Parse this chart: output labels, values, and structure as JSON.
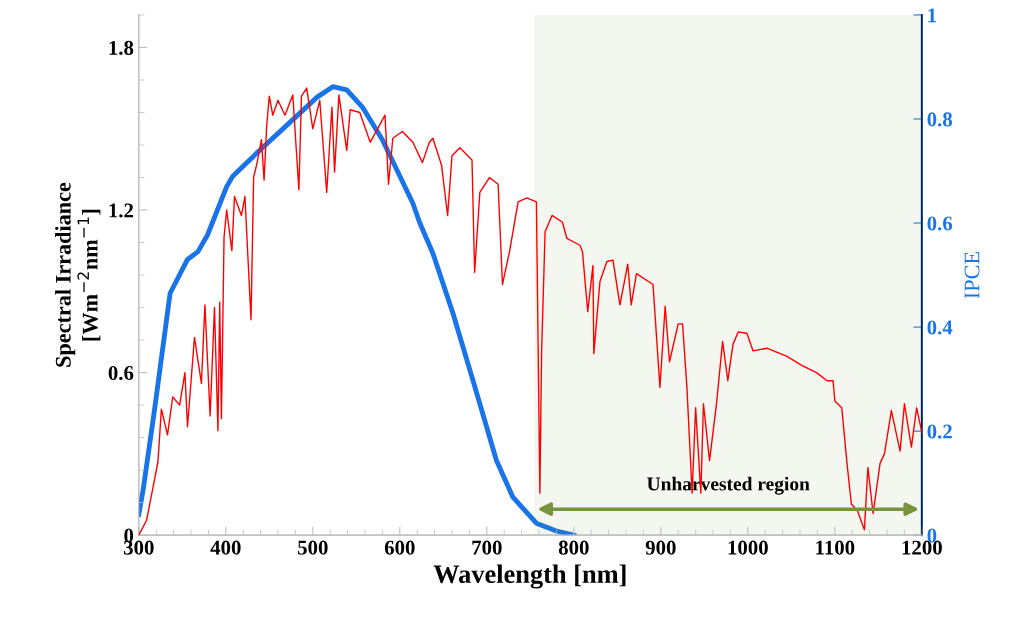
{
  "chart_data": {
    "type": "line",
    "xlabel": "Wavelength [nm]",
    "ylabel": "Spectral Irradiance\n[Wm$^{−2}$nm$^{−1}$]",
    "y2label": "IPCE",
    "xlim": [
      300,
      1200
    ],
    "xticks": [
      300,
      400,
      500,
      600,
      700,
      800,
      900,
      1000,
      1100,
      1200
    ],
    "ylim": [
      0,
      1.92
    ],
    "yticks": [
      0,
      0.6,
      1.2,
      1.8
    ],
    "y2lim": [
      0,
      1
    ],
    "y2ticks": [
      0,
      0.2,
      0.4,
      0.6,
      0.8,
      1
    ],
    "grid": false,
    "legend": false,
    "marker": "none",
    "line_style": "solid",
    "bands": [
      {
        "axis": "x",
        "from": 755,
        "to": 1200,
        "label": "Unharvested region",
        "color": "#77933c"
      }
    ],
    "series": [
      {
        "color": "#ff0000",
        "axis": "y",
        "x": [
          300,
          309,
          322,
          326,
          333,
          339,
          347,
          353,
          356,
          364,
          372,
          376,
          382,
          387,
          391,
          393,
          395,
          398,
          401,
          407,
          410,
          418,
          422,
          429,
          432,
          436,
          441,
          444,
          447,
          450,
          454,
          460,
          468,
          477,
          484,
          487,
          493,
          500,
          508,
          516,
          522,
          525,
          530,
          539,
          543,
          554,
          566,
          583,
          587,
          592,
          603,
          615,
          626,
          634,
          638,
          648,
          655,
          660,
          669,
          683,
          686,
          692,
          703,
          713,
          718,
          726,
          736,
          746,
          757,
          761,
          763,
          767,
          775,
          787,
          792,
          807,
          810,
          816,
          822,
          823,
          830,
          838,
          845,
          853,
          862,
          866,
          872,
          891,
          899,
          905,
          910,
          920,
          925,
          930,
          936,
          940,
          946,
          949,
          956,
          964,
          971,
          977,
          983,
          989,
          999,
          1006,
          1022,
          1045,
          1063,
          1079,
          1091,
          1098,
          1100,
          1108,
          1114,
          1119,
          1126,
          1134,
          1138,
          1144,
          1152,
          1157,
          1165,
          1175,
          1180,
          1188,
          1194,
          1200
        ],
        "values": [
          0,
          0.055,
          0.27,
          0.465,
          0.37,
          0.51,
          0.48,
          0.6,
          0.4,
          0.73,
          0.56,
          0.85,
          0.44,
          0.84,
          0.385,
          0.86,
          0.43,
          1.1,
          1.2,
          1.05,
          1.25,
          1.18,
          1.25,
          0.795,
          1.32,
          1.375,
          1.46,
          1.31,
          1.51,
          1.62,
          1.55,
          1.605,
          1.55,
          1.625,
          1.275,
          1.62,
          1.65,
          1.5,
          1.605,
          1.265,
          1.58,
          1.34,
          1.625,
          1.42,
          1.57,
          1.56,
          1.45,
          1.55,
          1.295,
          1.465,
          1.49,
          1.45,
          1.375,
          1.45,
          1.465,
          1.365,
          1.18,
          1.4,
          1.43,
          1.385,
          0.97,
          1.265,
          1.32,
          1.295,
          0.925,
          1.045,
          1.23,
          1.245,
          1.23,
          0.155,
          0.68,
          1.12,
          1.18,
          1.155,
          1.095,
          1.07,
          1.045,
          0.825,
          0.995,
          0.67,
          0.935,
          1.01,
          1.015,
          0.85,
          1.0,
          0.85,
          0.965,
          0.925,
          0.545,
          0.845,
          0.64,
          0.78,
          0.78,
          0.545,
          0.155,
          0.47,
          0.155,
          0.485,
          0.275,
          0.485,
          0.715,
          0.57,
          0.705,
          0.75,
          0.745,
          0.68,
          0.69,
          0.66,
          0.625,
          0.6,
          0.57,
          0.57,
          0.495,
          0.47,
          0.265,
          0.115,
          0.09,
          0.02,
          0.25,
          0.08,
          0.265,
          0.3,
          0.46,
          0.31,
          0.485,
          0.325,
          0.47,
          0.38
        ]
      },
      {
        "color": "#1874e8",
        "axis": "y2",
        "x": [
          300,
          305,
          318,
          336,
          356,
          368,
          379,
          401,
          408,
          439,
          474,
          505,
          523,
          539,
          557,
          580,
          615,
          623,
          638,
          661,
          684,
          711,
          730,
          757,
          780,
          800
        ],
        "values": [
          0.04,
          0.087,
          0.24,
          0.465,
          0.53,
          0.545,
          0.577,
          0.67,
          0.69,
          0.74,
          0.794,
          0.842,
          0.862,
          0.856,
          0.823,
          0.76,
          0.638,
          0.6,
          0.542,
          0.427,
          0.298,
          0.144,
          0.073,
          0.023,
          0.008,
          0
        ]
      }
    ]
  }
}
